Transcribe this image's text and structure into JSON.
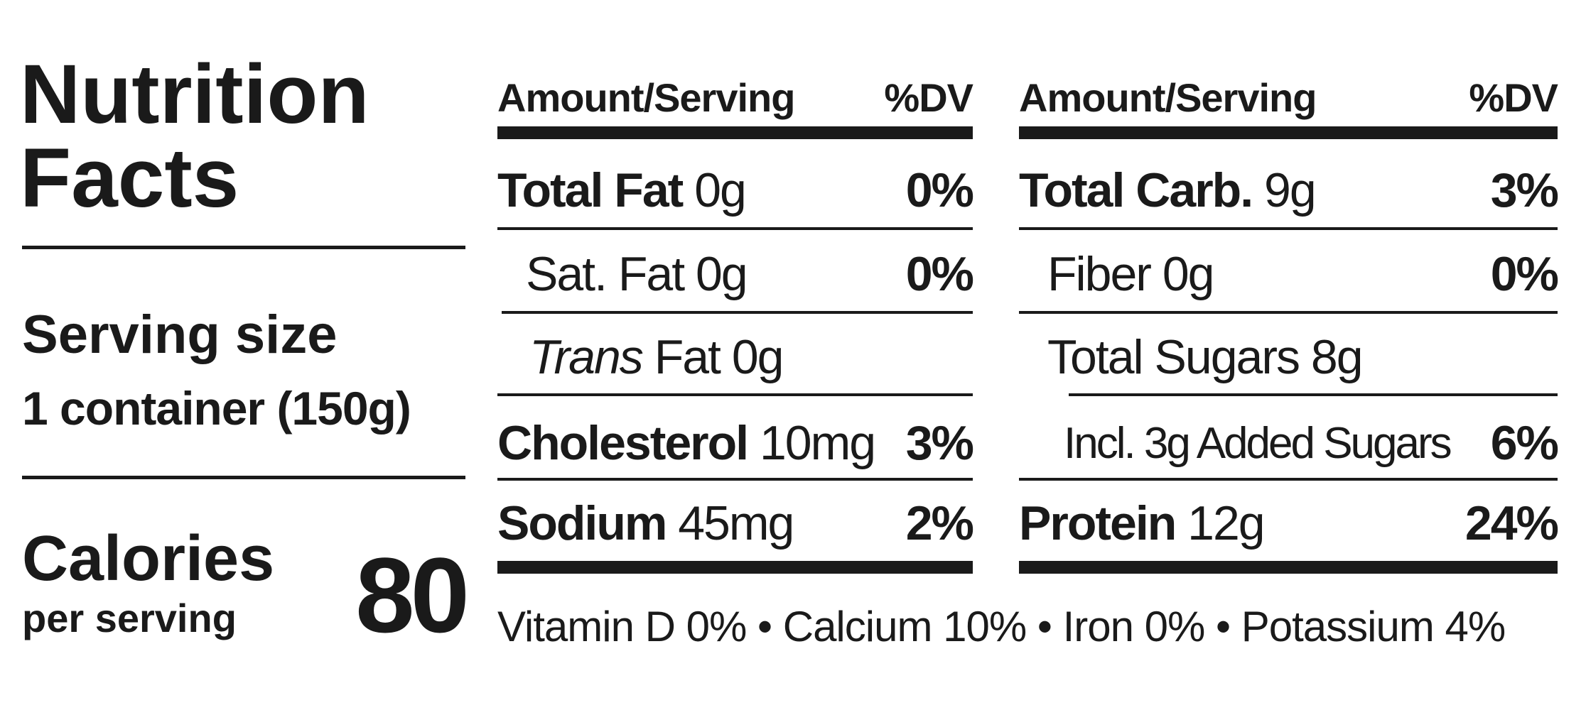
{
  "header": {
    "title_line1": "Nutrition",
    "title_line2": "Facts"
  },
  "serving": {
    "label": "Serving size",
    "size": "1 container (150g)"
  },
  "calories": {
    "label": "Calories",
    "sublabel": "per serving",
    "value": 80
  },
  "columns": [
    {
      "amount_header": "Amount/Serving",
      "dv_header": "%DV",
      "rows": [
        {
          "name": "Total Fat",
          "amount": "0g",
          "dv": "0%"
        },
        {
          "text": "Sat. Fat 0g",
          "dv": "0%"
        },
        {
          "name_italic": "Trans",
          "text": "Fat 0g"
        },
        {
          "name": "Cholesterol",
          "amount": "10mg",
          "dv": "3%"
        },
        {
          "name": "Sodium",
          "amount": "45mg",
          "dv": "2%"
        }
      ]
    },
    {
      "amount_header": "Amount/Serving",
      "dv_header": "%DV",
      "rows": [
        {
          "name": "Total Carb.",
          "amount": "9g",
          "dv": "3%"
        },
        {
          "text": "Fiber 0g",
          "dv": "0%"
        },
        {
          "text": "Total Sugars 8g"
        },
        {
          "text": "Incl. 3g Added Sugars",
          "dv": "6%"
        },
        {
          "name": "Protein",
          "amount": "12g",
          "dv": "24%"
        }
      ]
    }
  ],
  "vitamins": [
    "Vitamin D 0%",
    "Calcium 10%",
    "Iron 0%",
    "Potassium 4%"
  ]
}
